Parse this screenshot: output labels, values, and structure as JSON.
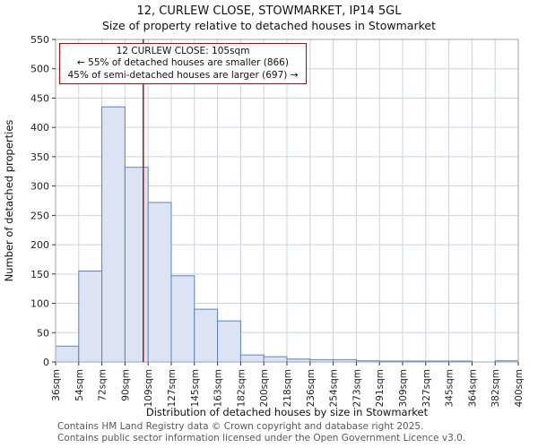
{
  "header": {
    "title": "12, CURLEW CLOSE, STOWMARKET, IP14 5GL",
    "subtitle": "Size of property relative to detached houses in Stowmarket"
  },
  "chart_data": {
    "type": "bar",
    "title": "12, CURLEW CLOSE, STOWMARKET, IP14 5GL",
    "subtitle": "Size of property relative to detached houses in Stowmarket",
    "xlabel": "Distribution of detached houses by size in Stowmarket",
    "ylabel": "Number of detached properties",
    "ylim": [
      0,
      550
    ],
    "yticks": [
      0,
      50,
      100,
      150,
      200,
      250,
      300,
      350,
      400,
      450,
      500,
      550
    ],
    "bin_edges": [
      36,
      54,
      72,
      90,
      109,
      127,
      145,
      163,
      182,
      200,
      218,
      236,
      254,
      273,
      291,
      309,
      327,
      345,
      364,
      382,
      400
    ],
    "tick_labels": [
      "36sqm",
      "54sqm",
      "72sqm",
      "90sqm",
      "109sqm",
      "127sqm",
      "145sqm",
      "163sqm",
      "182sqm",
      "200sqm",
      "218sqm",
      "236sqm",
      "254sqm",
      "273sqm",
      "291sqm",
      "309sqm",
      "327sqm",
      "345sqm",
      "364sqm",
      "382sqm",
      "400sqm"
    ],
    "values": [
      27,
      155,
      435,
      332,
      272,
      147,
      90,
      70,
      12,
      9,
      5,
      4,
      4,
      2,
      1,
      1,
      1,
      1,
      0,
      2
    ],
    "grid": true,
    "legend": null,
    "marker": {
      "value": 105,
      "label": "12 CURLEW CLOSE: 105sqm"
    },
    "annotation": {
      "line1": "12 CURLEW CLOSE: 105sqm",
      "line2": "← 55% of detached houses are smaller (866)",
      "line3": "45% of semi-detached houses are larger (697) →"
    },
    "colors": {
      "bar_fill": "#dce4f3",
      "bar_stroke": "#5b83c0",
      "marker_line": "#aa1111",
      "grid": "#c9d3e6",
      "plot_border": "#9aa5b8",
      "tick_text": "#222222",
      "annotation_border": "#c00000"
    }
  },
  "footer": {
    "line1": "Contains HM Land Registry data © Crown copyright and database right 2025.",
    "line2": "Contains public sector information licensed under the Open Government Licence v3.0."
  }
}
